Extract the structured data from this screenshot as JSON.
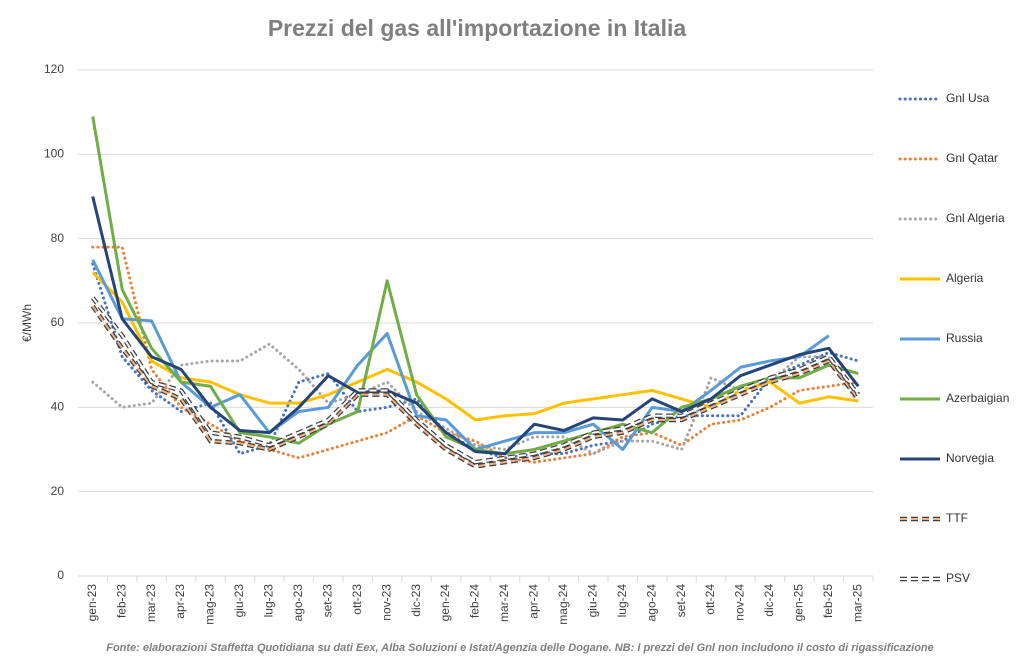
{
  "chart_data": {
    "type": "line",
    "title": "Prezzi del gas all'importazione in Italia",
    "y_label": "€/MWh",
    "note": "Fonte: elaborazioni Staffetta Quotidiana su dati Eex, Alba Soluzioni e Istat/Agenzia delle Dogane. NB: I prezzi del Gnl non includono il costo di rigassificazione",
    "categories": [
      "gen-23",
      "feb-23",
      "mar-23",
      "apr-23",
      "mag-23",
      "giu-23",
      "lug-23",
      "ago-23",
      "set-23",
      "ott-23",
      "nov-23",
      "dic-23",
      "gen-24",
      "feb-24",
      "mar-24",
      "apr-24",
      "mag-24",
      "giu-24",
      "lug-24",
      "ago-24",
      "set-24",
      "ott-24",
      "nov-24",
      "dic-24",
      "gen-25",
      "feb-25",
      "mar-25"
    ],
    "ylim": [
      0,
      120
    ],
    "yticks": [
      0,
      20,
      40,
      60,
      80,
      100,
      120
    ],
    "grid": true,
    "legend": "right",
    "series": [
      {
        "name": "Gnl Usa",
        "color": "#4472c4",
        "dash": "dot",
        "values": [
          74,
          52,
          44,
          39,
          41,
          29,
          31,
          46,
          48,
          39,
          40,
          42,
          34,
          30,
          28,
          29,
          29,
          31,
          32,
          36,
          38,
          38,
          38,
          47,
          50,
          53,
          51
        ]
      },
      {
        "name": "Gnl Qatar",
        "color": "#ed7d31",
        "dash": "dot",
        "values": [
          78,
          78,
          49,
          40,
          36,
          32,
          30,
          28,
          30,
          32,
          34,
          38,
          34,
          32,
          28,
          27,
          28,
          29,
          33,
          34,
          31,
          36,
          37,
          40,
          44,
          45,
          46
        ]
      },
      {
        "name": "Gnl Algeria",
        "color": "#a5a5a5",
        "dash": "dot",
        "values": [
          46,
          40,
          41,
          50,
          51,
          51,
          55,
          49,
          41,
          43,
          46,
          39,
          35,
          31,
          30,
          33,
          33,
          29,
          32,
          32,
          30,
          47,
          44,
          46,
          52,
          52,
          41
        ]
      },
      {
        "name": "Algeria",
        "color": "#ffc000",
        "dash": "solid",
        "values": [
          72,
          65,
          51,
          47,
          46,
          43,
          41,
          41,
          43,
          46,
          49,
          46,
          42,
          37,
          38,
          38.5,
          41,
          42,
          43,
          44,
          42,
          40,
          44,
          46,
          41,
          42.5,
          41.5
        ]
      },
      {
        "name": "Russia",
        "color": "#5b9bd5",
        "dash": "solid",
        "values": [
          75,
          61,
          60.5,
          46,
          40,
          43,
          34,
          39,
          40,
          50,
          57.5,
          38,
          37,
          30,
          32,
          34,
          34,
          36,
          30,
          40,
          39,
          44,
          49.5,
          51,
          52,
          57,
          null
        ]
      },
      {
        "name": "Azerbaigian",
        "color": "#70ad47",
        "dash": "solid",
        "values": [
          109,
          68,
          54,
          46,
          45,
          34,
          33,
          31.5,
          36,
          39,
          70,
          43,
          33,
          30,
          29,
          30,
          32,
          34,
          36,
          34,
          40,
          42,
          45,
          47,
          47,
          50,
          48
        ]
      },
      {
        "name": "Norvegia",
        "color": "#264478",
        "dash": "solid",
        "values": [
          90,
          61,
          52,
          49,
          40,
          34.5,
          34,
          40,
          47.5,
          43.5,
          44,
          41,
          34,
          29.5,
          29,
          36,
          34.5,
          37.5,
          37,
          42,
          39,
          42,
          47.5,
          50,
          52.5,
          54,
          45
        ]
      },
      {
        "name": "TTF",
        "color": "#f4b183",
        "dash": "dashed",
        "values": [
          64,
          54,
          45,
          42,
          32,
          31.5,
          30,
          33,
          36,
          43,
          43,
          36,
          30,
          26,
          27,
          28,
          30,
          33,
          34,
          37,
          37,
          40,
          43,
          46,
          48,
          51,
          42
        ]
      },
      {
        "name": "PSV",
        "color": "#ffffff",
        "dash": "dashed",
        "values": [
          66,
          57,
          46,
          44,
          34,
          33,
          31,
          34,
          37,
          44,
          44,
          37,
          31,
          27,
          28,
          29,
          31,
          34,
          35,
          38,
          38,
          41,
          44,
          47,
          49,
          52,
          43
        ]
      }
    ]
  }
}
